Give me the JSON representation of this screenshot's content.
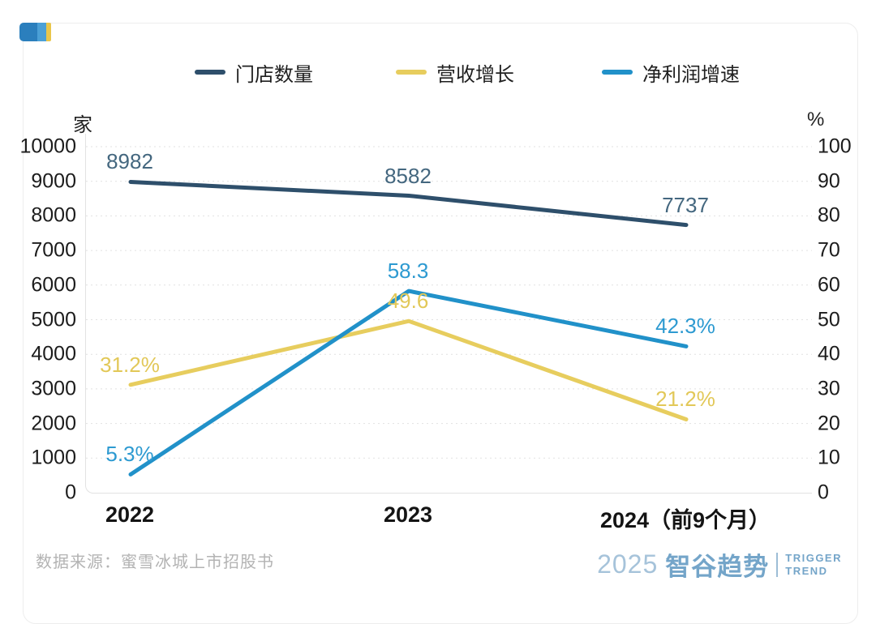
{
  "brand_flag": {
    "colors": [
      "#2b7fbd",
      "#4ba0d6",
      "#e9c64a"
    ]
  },
  "legend": {
    "items": [
      {
        "label": "门店数量",
        "color": "#2e4f6b"
      },
      {
        "label": "营收增长",
        "color": "#e7cd5e"
      },
      {
        "label": "净利润增速",
        "color": "#2191c9"
      }
    ]
  },
  "chart_data": {
    "type": "line",
    "title": "",
    "categories": [
      "2022",
      "2023",
      "2024（前9个月）"
    ],
    "left_axis": {
      "unit": "家",
      "min": 0,
      "max": 10000,
      "step": 1000
    },
    "right_axis": {
      "unit": "%",
      "min": 0,
      "max": 100,
      "step": 10
    },
    "grid": "horizontal-dashed",
    "legend_position": "top",
    "series": [
      {
        "name": "门店数量",
        "axis": "left",
        "color": "#2e4f6b",
        "label_color": "#44677f",
        "values": [
          8982,
          8582,
          7737
        ],
        "point_labels": [
          "8982",
          "8582",
          "7737"
        ]
      },
      {
        "name": "营收增长",
        "axis": "right",
        "color": "#e7cd5e",
        "label_color": "#e2c858",
        "values": [
          31.2,
          49.6,
          21.2
        ],
        "point_labels": [
          "31.2%",
          "49.6",
          "21.2%"
        ]
      },
      {
        "name": "净利润增速",
        "axis": "right",
        "color": "#2191c9",
        "label_color": "#2d9ad1",
        "values": [
          5.3,
          58.3,
          42.3
        ],
        "point_labels": [
          "5.3%",
          "58.3",
          "42.3%"
        ]
      }
    ]
  },
  "footer": {
    "source": "数据来源：蜜雪冰城上市招股书"
  },
  "logo": {
    "year": "2025",
    "brand": "智谷趋势",
    "tagline_top": "TRIGGER",
    "tagline_bottom": "TREND"
  }
}
